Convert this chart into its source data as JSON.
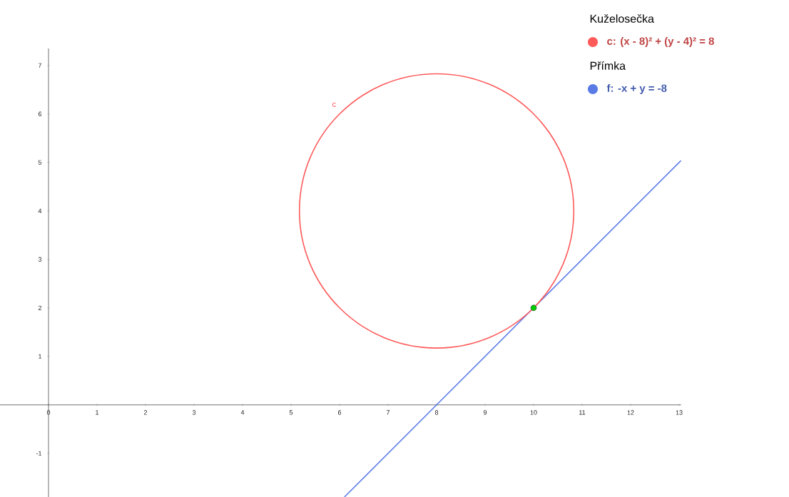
{
  "chart_data": {
    "type": "line",
    "xlim": [
      -1,
      13.04
    ],
    "ylim": [
      -1.9,
      7.35
    ],
    "xticks": [
      0,
      1,
      2,
      3,
      4,
      5,
      6,
      7,
      8,
      9,
      10,
      11,
      12,
      13
    ],
    "yticks": [
      -1,
      1,
      2,
      3,
      4,
      5,
      6,
      7
    ],
    "grid": false,
    "legend": "top right",
    "annotations": [
      "Kuželosečka",
      "c: (x - 8)² + (y - 4)² = 8",
      "Přímka",
      "c"
    ],
    "series": [
      {
        "name": "f: -x + y = -8",
        "color": "#5a7ae6",
        "marker": "none",
        "x": [
          6.1,
          8,
          10,
          13.04
        ],
        "values": [
          -1.9,
          0,
          2,
          5.04
        ]
      },
      {
        "type": "scatter",
        "color": "#00cc00",
        "marker": "circle",
        "x": [
          10
        ],
        "values": [
          2
        ]
      }
    ]
  }
}
